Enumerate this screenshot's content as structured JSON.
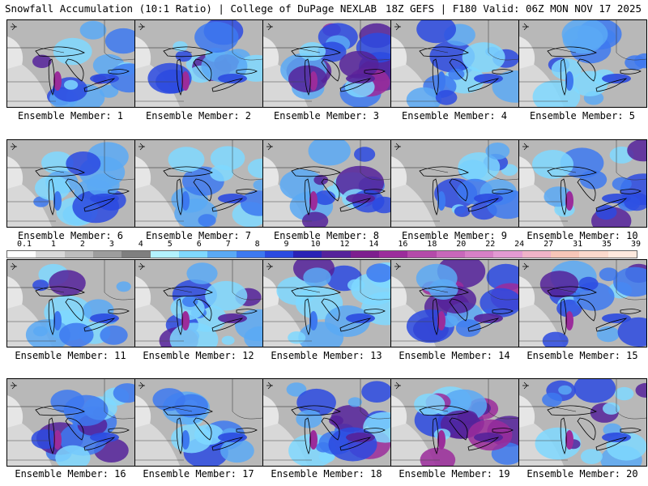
{
  "header": {
    "left": "Snowfall Accumulation (10:1 Ratio) | College of DuPage NEXLAB",
    "right": "18Z GEFS | F180 Valid: 06Z MON NOV 17 2025"
  },
  "members": [
    {
      "label": "Ensemble Member: 1",
      "intensity": 0.55
    },
    {
      "label": "Ensemble Member: 2",
      "intensity": 0.6
    },
    {
      "label": "Ensemble Member: 3",
      "intensity": 0.85
    },
    {
      "label": "Ensemble Member: 4",
      "intensity": 0.5
    },
    {
      "label": "Ensemble Member: 5",
      "intensity": 0.5
    },
    {
      "label": "Ensemble Member: 6",
      "intensity": 0.45
    },
    {
      "label": "Ensemble Member: 7",
      "intensity": 0.3
    },
    {
      "label": "Ensemble Member: 8",
      "intensity": 0.65
    },
    {
      "label": "Ensemble Member: 9",
      "intensity": 0.4
    },
    {
      "label": "Ensemble Member: 10",
      "intensity": 0.55
    },
    {
      "label": "Ensemble Member: 11",
      "intensity": 0.45
    },
    {
      "label": "Ensemble Member: 12",
      "intensity": 0.7
    },
    {
      "label": "Ensemble Member: 13",
      "intensity": 0.45
    },
    {
      "label": "Ensemble Member: 14",
      "intensity": 0.8
    },
    {
      "label": "Ensemble Member: 15",
      "intensity": 0.6
    },
    {
      "label": "Ensemble Member: 16",
      "intensity": 0.55
    },
    {
      "label": "Ensemble Member: 17",
      "intensity": 0.3
    },
    {
      "label": "Ensemble Member: 18",
      "intensity": 0.8
    },
    {
      "label": "Ensemble Member: 19",
      "intensity": 0.75
    },
    {
      "label": "Ensemble Member: 20",
      "intensity": 0.6
    }
  ],
  "legend": {
    "labels": [
      "0.1",
      "1",
      "2",
      "3",
      "4",
      "5",
      "6",
      "7",
      "8",
      "9",
      "10",
      "12",
      "14",
      "16",
      "18",
      "20",
      "22",
      "24",
      "27",
      "31",
      "35",
      "39"
    ],
    "colors": [
      "#ffffff",
      "#d9d9d9",
      "#bdbdbd",
      "#9d9d9d",
      "#7f7f7f",
      "#b3f2ff",
      "#7fd8ff",
      "#5aa9f5",
      "#3d79f0",
      "#2b4ae0",
      "#2a22b5",
      "#55229a",
      "#7d1f8e",
      "#9b2c9b",
      "#b44aa9",
      "#c867ba",
      "#d780c6",
      "#e39ad3",
      "#f0b3c8",
      "#f7c6b8",
      "#fbd9cc",
      "#ffe9de"
    ]
  }
}
